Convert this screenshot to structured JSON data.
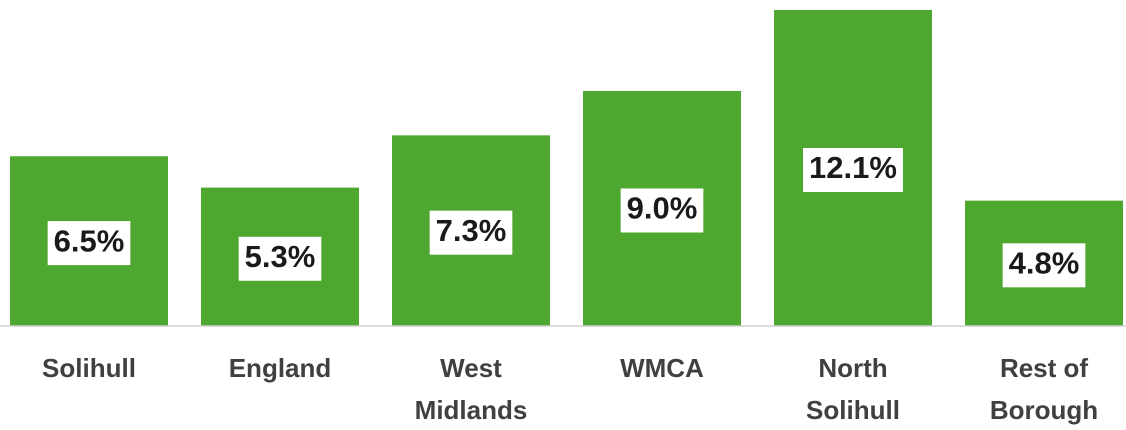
{
  "chart_data": {
    "type": "bar",
    "categories": [
      "Solihull",
      "England",
      "West\nMidlands",
      "WMCA",
      "North\nSolihull",
      "Rest of\nBorough"
    ],
    "values": [
      6.5,
      5.3,
      7.3,
      9.0,
      12.1,
      4.8
    ],
    "value_labels": [
      "6.5%",
      "5.3%",
      "7.3%",
      "9.0%",
      "12.1%",
      "4.8%"
    ],
    "color": "#4ea72e"
  }
}
